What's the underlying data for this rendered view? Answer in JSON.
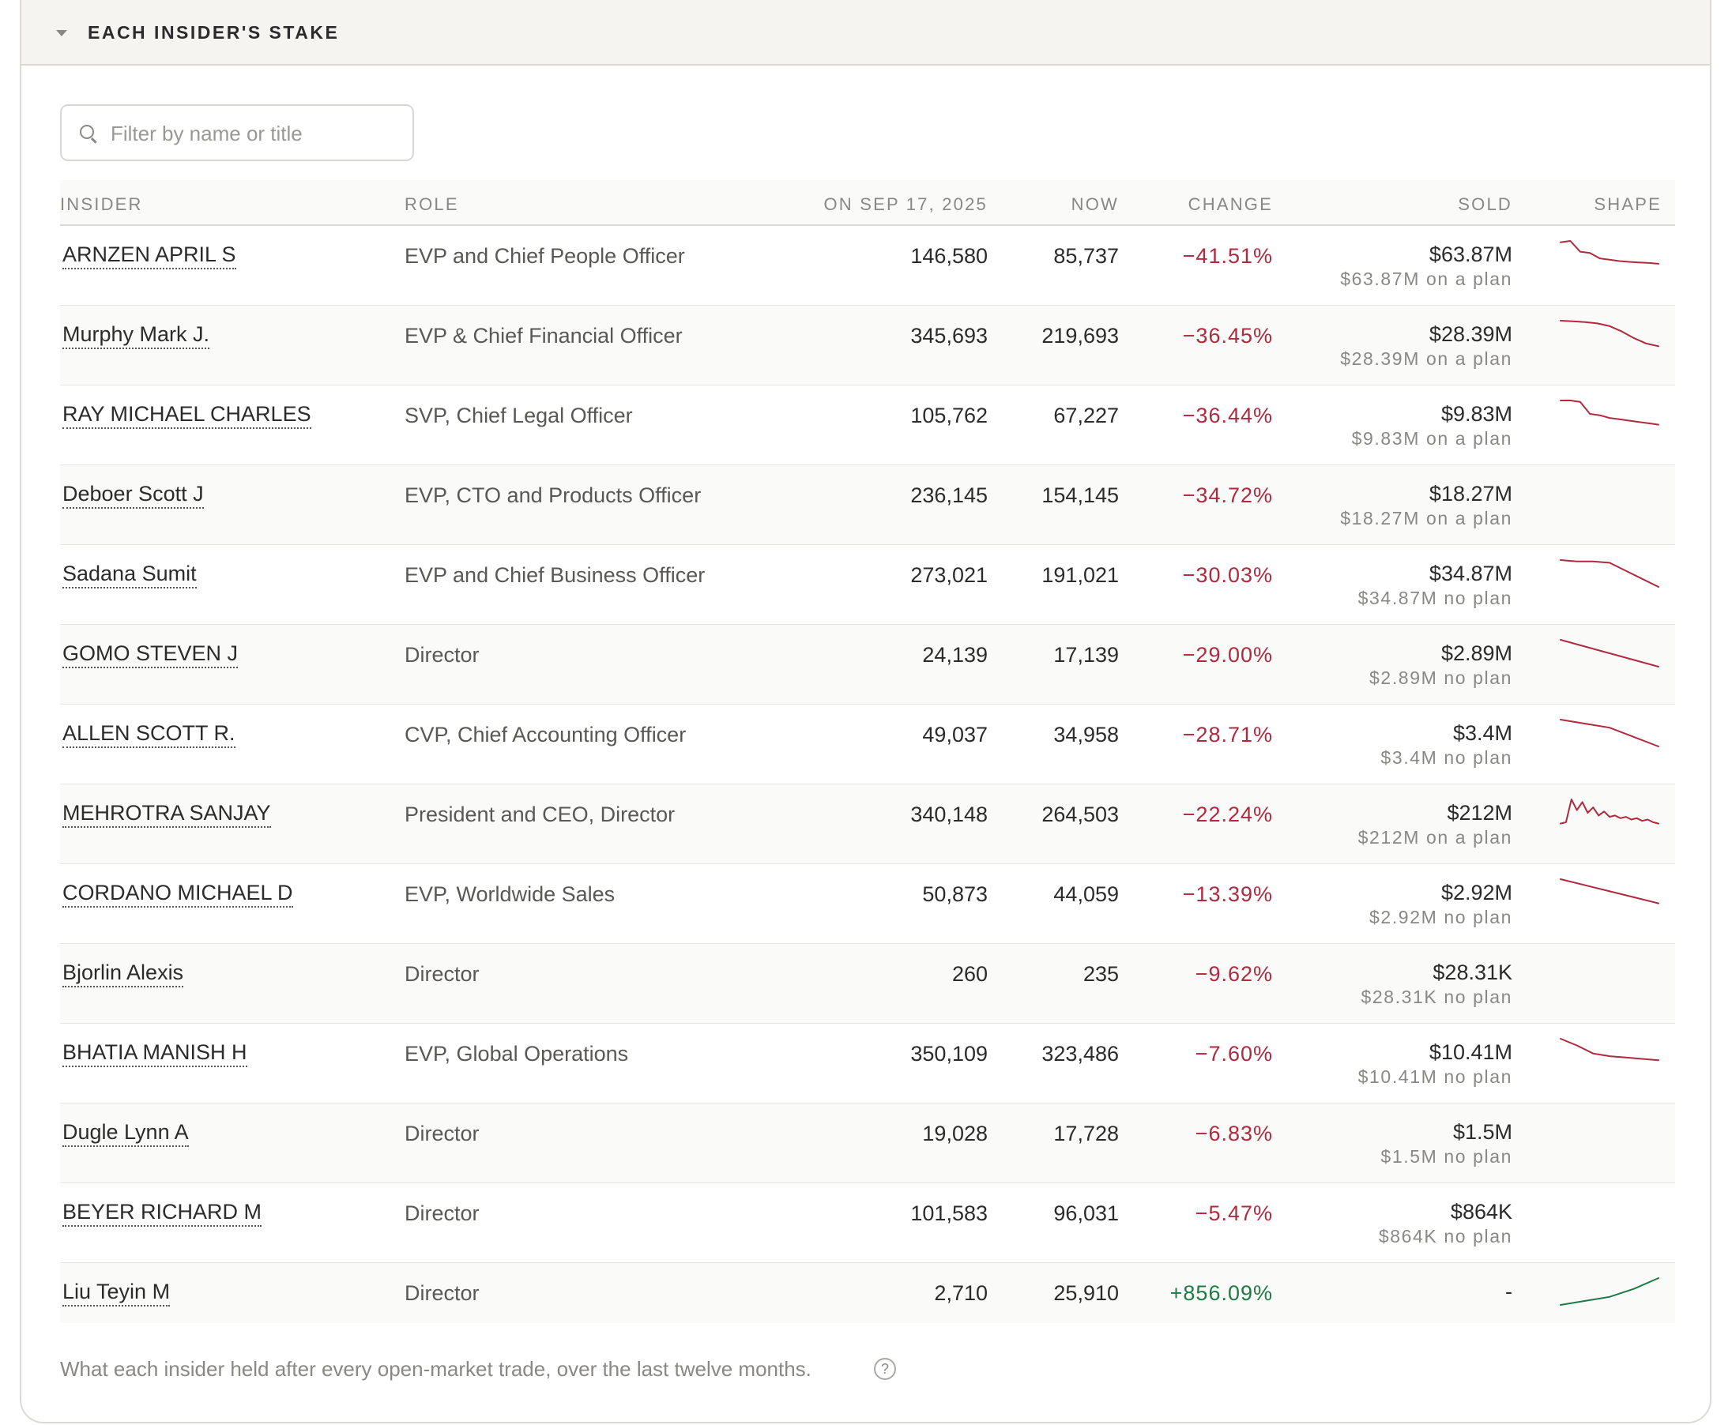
{
  "section": {
    "title": "EACH INSIDER'S STAKE"
  },
  "search": {
    "placeholder": "Filter by name or title"
  },
  "columns": {
    "insider": "INSIDER",
    "role": "ROLE",
    "then": "ON SEP 17, 2025",
    "now": "NOW",
    "change": "CHANGE",
    "sold": "SOLD",
    "shape": "SHAPE"
  },
  "colors": {
    "negative": "#b02a3e",
    "positive": "#1f7a45"
  },
  "rows": [
    {
      "name": "ARNZEN APRIL S",
      "role": "EVP and Chief People Officer",
      "then": "146,580",
      "now": "85,737",
      "change": "−41.51%",
      "direction": "neg",
      "sold": "$63.87M",
      "plan": "$63.87M on a plan",
      "spark": [
        0.95,
        1.0,
        0.6,
        0.55,
        0.35,
        0.3,
        0.25,
        0.22,
        0.2,
        0.18,
        0.15
      ]
    },
    {
      "name": "Murphy Mark J.",
      "role": "EVP & Chief Financial Officer",
      "then": "345,693",
      "now": "219,693",
      "change": "−36.45%",
      "direction": "neg",
      "sold": "$28.39M",
      "plan": "$28.39M on a plan",
      "spark": [
        1.0,
        0.98,
        0.95,
        0.9,
        0.8,
        0.6,
        0.35,
        0.15,
        0.05
      ]
    },
    {
      "name": "RAY MICHAEL CHARLES",
      "role": "SVP, Chief Legal Officer",
      "then": "105,762",
      "now": "67,227",
      "change": "−36.44%",
      "direction": "neg",
      "sold": "$9.83M",
      "plan": "$9.83M on a plan",
      "spark": [
        1.0,
        1.0,
        0.95,
        0.5,
        0.45,
        0.35,
        0.3,
        0.25,
        0.2,
        0.15,
        0.1
      ]
    },
    {
      "name": "Deboer Scott J",
      "role": "EVP, CTO and Products Officer",
      "then": "236,145",
      "now": "154,145",
      "change": "−34.72%",
      "direction": "neg",
      "sold": "$18.27M",
      "plan": "$18.27M on a plan",
      "spark": []
    },
    {
      "name": "Sadana Sumit",
      "role": "EVP and Chief Business Officer",
      "then": "273,021",
      "now": "191,021",
      "change": "−30.03%",
      "direction": "neg",
      "sold": "$34.87M",
      "plan": "$34.87M no plan",
      "spark": [
        1.0,
        0.95,
        0.95,
        0.9,
        0.6,
        0.3,
        0.0
      ]
    },
    {
      "name": "GOMO STEVEN J",
      "role": "Director",
      "then": "24,139",
      "now": "17,139",
      "change": "−29.00%",
      "direction": "neg",
      "sold": "$2.89M",
      "plan": "$2.89M no plan",
      "spark": [
        1.0,
        0.75,
        0.5,
        0.25,
        0.0
      ]
    },
    {
      "name": "ALLEN SCOTT R.",
      "role": "CVP, Chief Accounting Officer",
      "then": "49,037",
      "now": "34,958",
      "change": "−28.71%",
      "direction": "neg",
      "sold": "$3.4M",
      "plan": "$3.4M no plan",
      "spark": [
        1.0,
        0.85,
        0.7,
        0.35,
        0.0
      ]
    },
    {
      "name": "MEHROTRA SANJAY",
      "role": "President and CEO, Director",
      "then": "340,148",
      "now": "264,503",
      "change": "−22.24%",
      "direction": "neg",
      "sold": "$212M",
      "plan": "$212M on a plan",
      "spark": [
        0.1,
        0.15,
        1.0,
        0.6,
        0.9,
        0.5,
        0.7,
        0.4,
        0.55,
        0.35,
        0.4,
        0.3,
        0.35,
        0.25,
        0.3,
        0.2,
        0.25,
        0.15,
        0.1
      ]
    },
    {
      "name": "CORDANO MICHAEL D",
      "role": "EVP, Worldwide Sales",
      "then": "50,873",
      "now": "44,059",
      "change": "−13.39%",
      "direction": "neg",
      "sold": "$2.92M",
      "plan": "$2.92M no plan",
      "spark": [
        1.0,
        0.7,
        0.4,
        0.1
      ]
    },
    {
      "name": "Bjorlin Alexis",
      "role": "Director",
      "then": "260",
      "now": "235",
      "change": "−9.62%",
      "direction": "neg",
      "sold": "$28.31K",
      "plan": "$28.31K no plan",
      "spark": []
    },
    {
      "name": "BHATIA MANISH H",
      "role": "EVP, Global Operations",
      "then": "350,109",
      "now": "323,486",
      "change": "−7.60%",
      "direction": "neg",
      "sold": "$10.41M",
      "plan": "$10.41M no plan",
      "spark": [
        1.0,
        0.75,
        0.45,
        0.35,
        0.3,
        0.25,
        0.2
      ]
    },
    {
      "name": "Dugle Lynn A",
      "role": "Director",
      "then": "19,028",
      "now": "17,728",
      "change": "−6.83%",
      "direction": "neg",
      "sold": "$1.5M",
      "plan": "$1.5M no plan",
      "spark": []
    },
    {
      "name": "BEYER RICHARD M",
      "role": "Director",
      "then": "101,583",
      "now": "96,031",
      "change": "−5.47%",
      "direction": "neg",
      "sold": "$864K",
      "plan": "$864K no plan",
      "spark": []
    },
    {
      "name": "Liu Teyin M",
      "role": "Director",
      "then": "2,710",
      "now": "25,910",
      "change": "+856.09%",
      "direction": "pos",
      "sold": "-",
      "plan": "",
      "spark": [
        0.0,
        0.15,
        0.3,
        0.6,
        1.0
      ]
    }
  ],
  "footer": {
    "text": "What each insider held after every open-market trade, over the last twelve months.",
    "help": "?"
  }
}
